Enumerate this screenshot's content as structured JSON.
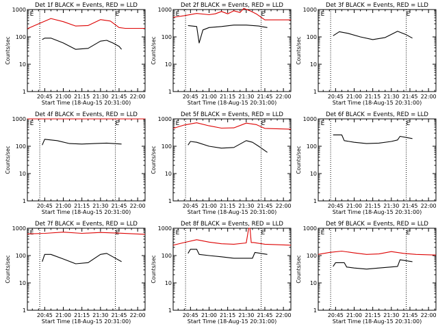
{
  "chart_data": [
    {
      "type": "line",
      "title": "Det 1f BLACK = Events, RED = LLD",
      "xlabel": "Start Time (18-Aug-15 20:31:00)",
      "ylabel": "Counts/sec",
      "ylim": [
        1,
        1000
      ],
      "yscale": "log",
      "x_ticks": [
        "20:45",
        "21:00",
        "21:15",
        "21:30",
        "21:45",
        "22:00"
      ],
      "markers": [
        {
          "label": "E",
          "time": "20:33"
        },
        {
          "label": "E",
          "time": "21:42"
        }
      ],
      "dotted_lines": [
        "20:41",
        "21:42"
      ],
      "series": [
        {
          "color": "#dd0000",
          "x": [
            "20:31",
            "20:40",
            "20:50",
            "21:00",
            "21:10",
            "21:20",
            "21:30",
            "21:38",
            "21:45",
            "21:50",
            "22:06"
          ],
          "y": [
            200,
            300,
            470,
            360,
            250,
            260,
            430,
            380,
            220,
            205,
            205
          ]
        },
        {
          "color": "#000000",
          "x": [
            "20:43",
            "20:45",
            "20:50",
            "21:00",
            "21:10",
            "21:20",
            "21:30",
            "21:35",
            "21:40",
            "21:45",
            "21:47"
          ],
          "y": [
            80,
            90,
            90,
            60,
            35,
            38,
            70,
            75,
            60,
            45,
            35
          ]
        }
      ]
    },
    {
      "type": "line",
      "title": "Det 2f BLACK = Events, RED = LLD",
      "xlabel": "Start Time (18-Aug-15 20:31:00)",
      "ylabel": "Counts/sec",
      "ylim": [
        1,
        1000
      ],
      "yscale": "log",
      "x_ticks": [
        "20:45",
        "21:00",
        "21:15",
        "21:30",
        "21:45",
        "22:00"
      ],
      "markers": [
        {
          "label": "E",
          "time": "20:33"
        },
        {
          "label": "E",
          "time": "21:42"
        }
      ],
      "dotted_lines": [
        "20:41",
        "21:42"
      ],
      "series": [
        {
          "color": "#dd0000",
          "x": [
            "20:31",
            "20:40",
            "20:50",
            "21:00",
            "21:05",
            "21:10",
            "21:15",
            "21:20",
            "21:25",
            "21:28",
            "21:33",
            "21:38",
            "21:45",
            "22:06"
          ],
          "y": [
            520,
            600,
            720,
            650,
            700,
            850,
            700,
            900,
            780,
            1100,
            900,
            700,
            420,
            420
          ]
        },
        {
          "color": "#000000",
          "x": [
            "20:43",
            "20:50",
            "20:52",
            "20:55",
            "21:00",
            "21:10",
            "21:20",
            "21:30",
            "21:40",
            "21:47"
          ],
          "y": [
            260,
            240,
            60,
            180,
            220,
            240,
            270,
            270,
            250,
            220
          ]
        }
      ]
    },
    {
      "type": "line",
      "title": "Det 3f BLACK = Events, RED = LLD",
      "xlabel": "Start Time (18-Aug-15 20:31:00)",
      "ylabel": "Counts/sec",
      "ylim": [
        1,
        1000
      ],
      "yscale": "log",
      "x_ticks": [
        "20:45",
        "21:00",
        "21:15",
        "21:30",
        "21:45",
        "22:00"
      ],
      "markers": [
        {
          "label": "E",
          "time": "20:33"
        },
        {
          "label": "E",
          "time": "21:42"
        }
      ],
      "dotted_lines": [
        "20:41",
        "21:42"
      ],
      "series": [
        {
          "color": "#000000",
          "x": [
            "20:43",
            "20:48",
            "20:55",
            "21:05",
            "21:15",
            "21:25",
            "21:35",
            "21:42",
            "21:47"
          ],
          "y": [
            110,
            155,
            135,
            100,
            80,
            95,
            160,
            120,
            90
          ]
        }
      ]
    },
    {
      "type": "line",
      "title": "Det 4f BLACK = Events, RED = LLD",
      "xlabel": "Start Time (18-Aug-15 20:31:00)",
      "ylabel": "Counts/sec",
      "ylim": [
        1,
        1000
      ],
      "yscale": "log",
      "x_ticks": [
        "20:45",
        "21:00",
        "21:15",
        "21:30",
        "21:45",
        "22:00"
      ],
      "markers": [
        {
          "label": "E",
          "time": "20:33"
        },
        {
          "label": "E",
          "time": "21:42"
        }
      ],
      "dotted_lines": [
        "20:41",
        "21:42"
      ],
      "series": [
        {
          "color": "#dd0000",
          "x": [
            "20:31",
            "21:00",
            "21:30",
            "22:06"
          ],
          "y": [
            1000,
            1000,
            1000,
            1000
          ]
        },
        {
          "color": "#000000",
          "x": [
            "20:43",
            "20:45",
            "20:55",
            "21:05",
            "21:15",
            "21:25",
            "21:35",
            "21:47"
          ],
          "y": [
            110,
            180,
            160,
            125,
            120,
            125,
            130,
            120
          ]
        }
      ]
    },
    {
      "type": "line",
      "title": "Det 5f BLACK = Events, RED = LLD",
      "xlabel": "Start Time (18-Aug-15 20:31:00)",
      "ylabel": "Counts/sec",
      "ylim": [
        1,
        1000
      ],
      "yscale": "log",
      "x_ticks": [
        "20:45",
        "21:00",
        "21:15",
        "21:30",
        "21:45",
        "22:00"
      ],
      "markers": [
        {
          "label": "E",
          "time": "20:33"
        },
        {
          "label": "E",
          "time": "21:42"
        }
      ],
      "dotted_lines": [
        "20:41",
        "21:42"
      ],
      "series": [
        {
          "color": "#dd0000",
          "x": [
            "20:31",
            "20:40",
            "20:50",
            "21:00",
            "21:10",
            "21:20",
            "21:30",
            "21:38",
            "21:45",
            "22:06"
          ],
          "y": [
            450,
            600,
            720,
            560,
            460,
            470,
            700,
            620,
            450,
            420
          ]
        },
        {
          "color": "#000000",
          "x": [
            "20:43",
            "20:45",
            "20:50",
            "21:00",
            "21:10",
            "21:20",
            "21:30",
            "21:35",
            "21:40",
            "21:47"
          ],
          "y": [
            110,
            150,
            140,
            100,
            85,
            90,
            160,
            140,
            100,
            60
          ]
        }
      ]
    },
    {
      "type": "line",
      "title": "Det 6f BLACK = Events, RED = LLD",
      "xlabel": "Start Time (18-Aug-15 20:31:00)",
      "ylabel": "Counts/sec",
      "ylim": [
        1,
        1000
      ],
      "yscale": "log",
      "x_ticks": [
        "20:45",
        "21:00",
        "21:15",
        "21:30",
        "21:45",
        "22:00"
      ],
      "markers": [
        {
          "label": "E",
          "time": "20:33"
        },
        {
          "label": "E",
          "time": "21:42"
        }
      ],
      "dotted_lines": [
        "20:41",
        "21:42"
      ],
      "series": [
        {
          "color": "#000000",
          "x": [
            "20:43",
            "20:50",
            "20:52",
            "21:00",
            "21:10",
            "21:20",
            "21:30",
            "21:35",
            "21:37",
            "21:47"
          ],
          "y": [
            260,
            260,
            160,
            140,
            125,
            130,
            150,
            170,
            230,
            190
          ]
        }
      ]
    },
    {
      "type": "line",
      "title": "Det 7f BLACK = Events, RED = LLD",
      "xlabel": "Start Time (18-Aug-15 20:31:00)",
      "ylabel": "Counts/sec",
      "ylim": [
        1,
        1000
      ],
      "yscale": "log",
      "x_ticks": [
        "20:45",
        "21:00",
        "21:15",
        "21:30",
        "21:45",
        "22:00"
      ],
      "markers": [
        {
          "label": "E",
          "time": "20:33"
        },
        {
          "label": "E",
          "time": "21:42"
        }
      ],
      "dotted_lines": [
        "20:41",
        "21:42"
      ],
      "series": [
        {
          "color": "#dd0000",
          "x": [
            "20:31",
            "20:45",
            "21:00",
            "21:15",
            "21:30",
            "21:45",
            "22:06"
          ],
          "y": [
            620,
            650,
            720,
            650,
            700,
            660,
            600
          ]
        },
        {
          "color": "#000000",
          "x": [
            "20:43",
            "20:45",
            "20:50",
            "21:00",
            "21:10",
            "21:20",
            "21:30",
            "21:35",
            "21:40",
            "21:47"
          ],
          "y": [
            60,
            110,
            110,
            75,
            50,
            55,
            110,
            120,
            90,
            60
          ]
        }
      ]
    },
    {
      "type": "line",
      "title": "Det 8f BLACK = Events, RED = LLD",
      "xlabel": "Start Time (18-Aug-15 20:31:00)",
      "ylabel": "Counts/sec",
      "ylim": [
        1,
        1000
      ],
      "yscale": "log",
      "x_ticks": [
        "20:45",
        "21:00",
        "21:15",
        "21:30",
        "21:45",
        "22:00"
      ],
      "markers": [
        {
          "label": "E",
          "time": "20:33"
        },
        {
          "label": "E",
          "time": "21:42"
        }
      ],
      "dotted_lines": [
        "20:41",
        "21:42"
      ],
      "series": [
        {
          "color": "#dd0000",
          "x": [
            "20:31",
            "20:40",
            "20:50",
            "21:00",
            "21:10",
            "21:20",
            "21:30",
            "21:32",
            "21:33",
            "21:34",
            "21:36",
            "21:45",
            "22:06"
          ],
          "y": [
            240,
            300,
            380,
            310,
            270,
            260,
            290,
            1000,
            1000,
            300,
            300,
            260,
            240
          ]
        },
        {
          "color": "#000000",
          "x": [
            "20:43",
            "20:45",
            "20:50",
            "20:52",
            "21:00",
            "21:10",
            "21:20",
            "21:35",
            "21:37",
            "21:47"
          ],
          "y": [
            120,
            170,
            170,
            110,
            100,
            90,
            80,
            80,
            130,
            110
          ]
        }
      ]
    },
    {
      "type": "line",
      "title": "Det 9f BLACK = Events, RED = LLD",
      "xlabel": "Start Time (18-Aug-15 20:31:00)",
      "ylabel": "Counts/sec",
      "ylim": [
        1,
        1000
      ],
      "yscale": "log",
      "x_ticks": [
        "20:45",
        "21:00",
        "21:15",
        "21:30",
        "21:45",
        "22:00"
      ],
      "markers": [
        {
          "label": "E",
          "time": "20:33"
        },
        {
          "label": "E",
          "time": "21:42"
        }
      ],
      "dotted_lines": [
        "20:41",
        "21:42"
      ],
      "series": [
        {
          "color": "#dd0000",
          "x": [
            "20:31",
            "20:40",
            "20:50",
            "21:00",
            "21:10",
            "21:20",
            "21:30",
            "21:40",
            "21:50",
            "22:06"
          ],
          "y": [
            110,
            130,
            145,
            125,
            110,
            115,
            140,
            120,
            110,
            105
          ]
        },
        {
          "color": "#000000",
          "x": [
            "20:43",
            "20:45",
            "20:52",
            "20:54",
            "21:00",
            "21:10",
            "21:20",
            "21:35",
            "21:37",
            "21:47"
          ],
          "y": [
            40,
            55,
            55,
            38,
            35,
            32,
            35,
            40,
            70,
            60
          ]
        }
      ]
    }
  ]
}
